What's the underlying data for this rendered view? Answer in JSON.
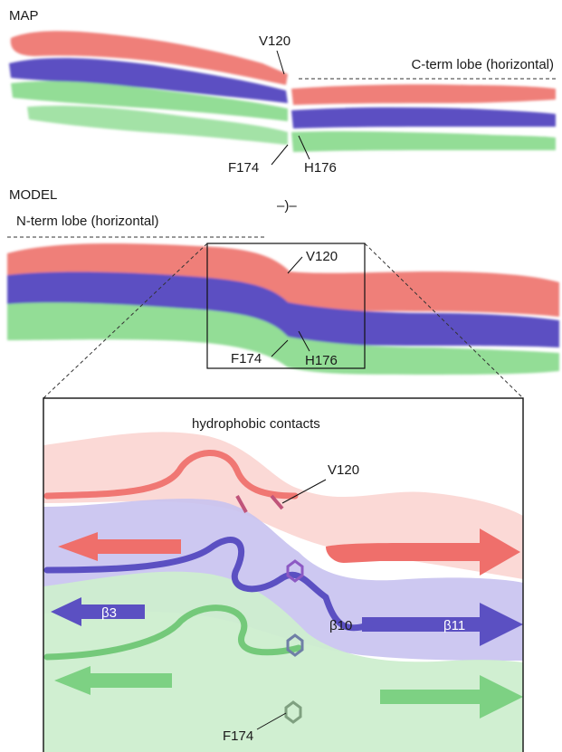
{
  "sections": {
    "map_label": "MAP",
    "model_label": "MODEL"
  },
  "lobes": {
    "c_term": "C-term lobe (horizontal)",
    "n_term": "N-term lobe (horizontal)"
  },
  "rotation_symbol": "–)–",
  "map_residues": {
    "v120": "V120",
    "f174": "F174",
    "h176": "H176"
  },
  "model_residues": {
    "v120": "V120",
    "f174": "F174",
    "h176": "H176"
  },
  "zoom": {
    "title": "hydrophobic contacts",
    "v120": "V120",
    "f174": "F174",
    "strands": {
      "b3": "β3",
      "b10": "β10",
      "b11": "β11"
    }
  },
  "colors": {
    "red_layer": "#ef7f79",
    "blue_layer": "#5b50c2",
    "green_layer": "#93dd96"
  }
}
